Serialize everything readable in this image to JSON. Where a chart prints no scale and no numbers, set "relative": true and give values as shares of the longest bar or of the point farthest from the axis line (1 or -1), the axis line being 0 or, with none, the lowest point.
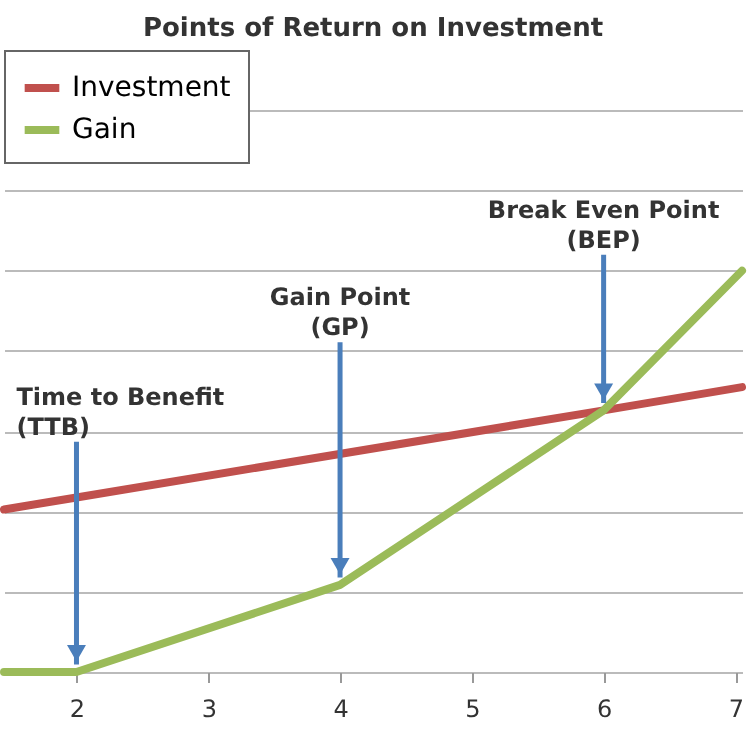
{
  "chart_data": {
    "type": "line",
    "title": "Points of Return on Investment",
    "relative": true,
    "xlim": [
      1.45,
      7.05
    ],
    "xticks": [
      2,
      3,
      4,
      5,
      6,
      7
    ],
    "series": [
      {
        "name": "Investment",
        "color": "#c0504d",
        "x": [
          1.45,
          2,
          6,
          7.05
        ],
        "values": [
          0.405,
          0.435,
          0.652,
          0.71
        ]
      },
      {
        "name": "Gain",
        "color": "#9bbb59",
        "x": [
          1.45,
          2,
          4,
          6,
          7.05
        ],
        "values": [
          0,
          0,
          0.217,
          0.652,
          1
        ]
      }
    ],
    "annotations": [
      {
        "text": "Time to Benefit\n(TTB)",
        "x": 2,
        "y": 0
      },
      {
        "text": "Gain Point\n(GP)",
        "x": 4,
        "y": 0.217
      },
      {
        "text": "Break Even Point\n(BEP)",
        "x": 6,
        "y": 0.652
      }
    ],
    "grid": "y",
    "legend": "top left",
    "tick_labels": "x",
    "line_style": "solid",
    "marker": "none"
  }
}
